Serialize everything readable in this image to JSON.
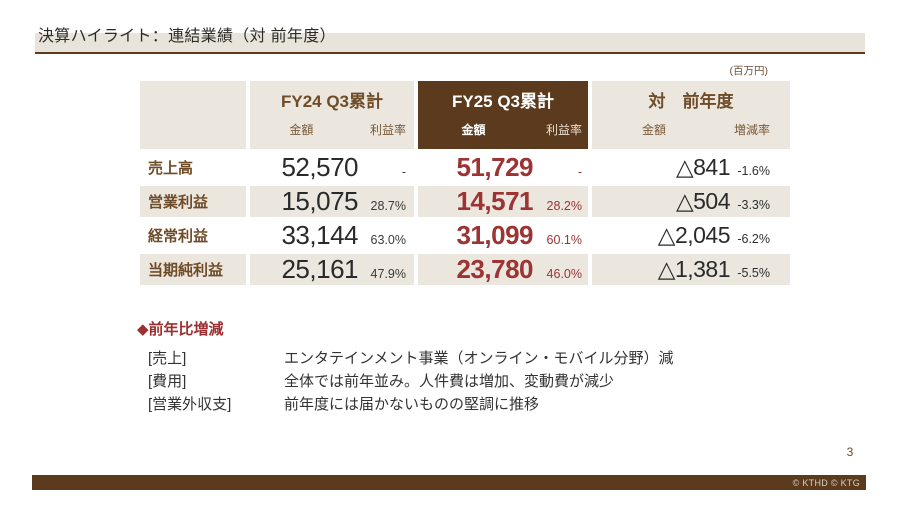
{
  "slide": {
    "title": "決算ハイライト：連結業績（対 前年度）",
    "unit_note": "(百万円)",
    "page_number": "3",
    "copyright": "© KTHD © KTG"
  },
  "table": {
    "groups": {
      "fy24": {
        "title": "FY24 Q3累計",
        "amount_header": "金額",
        "rate_header": "利益率"
      },
      "fy25": {
        "title": "FY25 Q3累計",
        "amount_header": "金額",
        "rate_header": "利益率"
      },
      "yoy": {
        "title": "対　前年度",
        "amount_header": "金額",
        "rate_header": "増減率"
      }
    },
    "rows": [
      {
        "label": "売上高",
        "fy24_amount": "52,570",
        "fy24_rate": "-",
        "fy25_amount": "51,729",
        "fy25_rate": "-",
        "yoy_amount": "△841",
        "yoy_rate": "-1.6%"
      },
      {
        "label": "営業利益",
        "fy24_amount": "15,075",
        "fy24_rate": "28.7%",
        "fy25_amount": "14,571",
        "fy25_rate": "28.2%",
        "yoy_amount": "△504",
        "yoy_rate": "-3.3%"
      },
      {
        "label": "経常利益",
        "fy24_amount": "33,144",
        "fy24_rate": "63.0%",
        "fy25_amount": "31,099",
        "fy25_rate": "60.1%",
        "yoy_amount": "△2,045",
        "yoy_rate": "-6.2%"
      },
      {
        "label": "当期純利益",
        "fy24_amount": "25,161",
        "fy24_rate": "47.9%",
        "fy25_amount": "23,780",
        "fy25_rate": "46.0%",
        "yoy_amount": "△1,381",
        "yoy_rate": "-5.5%"
      }
    ]
  },
  "notes": {
    "heading": "◆前年比増減",
    "items": [
      {
        "label": "[売上]",
        "text": "エンタテインメント事業（オンライン・モバイル分野）減"
      },
      {
        "label": "[費用]",
        "text": "全体では前年並み。人件費は増加、変動費が減少"
      },
      {
        "label": "[営業外収支]",
        "text": "前年度には届かないものの堅調に推移"
      }
    ]
  },
  "colors": {
    "dark_brown": "#5b3a1d",
    "beige": "#ebe6de",
    "maroon": "#9c3434",
    "label_brown": "#6f4c28"
  }
}
